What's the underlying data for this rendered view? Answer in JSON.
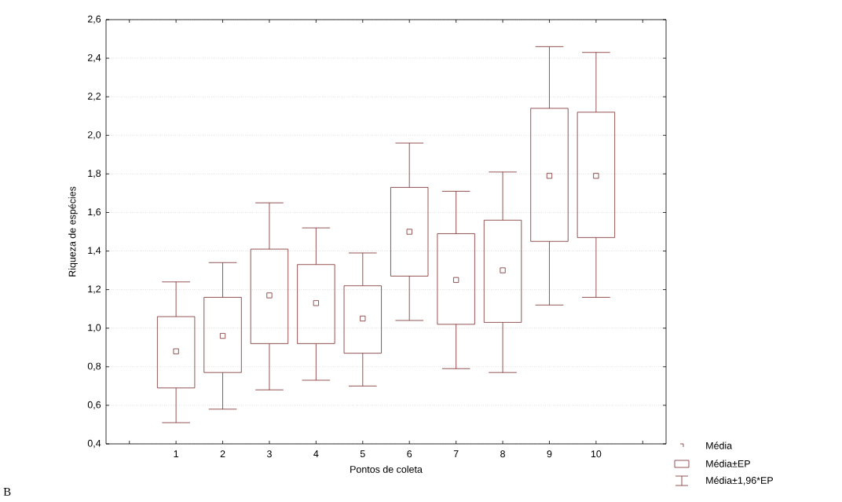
{
  "chart_data": {
    "type": "box",
    "xlabel": "Pontos de coleta",
    "ylabel": "Riqueza de espécies",
    "categories": [
      "1",
      "2",
      "3",
      "4",
      "5",
      "6",
      "7",
      "8",
      "9",
      "10"
    ],
    "series": [
      {
        "color": "#7a2a2a",
        "boxes": [
          {
            "low": 0.51,
            "q1": 0.69,
            "median": 0.88,
            "q3": 1.06,
            "high": 1.24
          },
          {
            "low": 0.58,
            "q1": 0.77,
            "median": 0.96,
            "q3": 1.16,
            "high": 1.34
          },
          {
            "low": 0.68,
            "q1": 0.92,
            "median": 1.17,
            "q3": 1.41,
            "high": 1.65
          },
          {
            "low": 0.73,
            "q1": 0.92,
            "median": 1.13,
            "q3": 1.33,
            "high": 1.52
          },
          {
            "low": 0.7,
            "q1": 0.87,
            "median": 1.05,
            "q3": 1.22,
            "high": 1.39
          },
          {
            "low": 1.04,
            "q1": 1.27,
            "median": 1.5,
            "q3": 1.73,
            "high": 1.96
          },
          {
            "low": 0.79,
            "q1": 1.02,
            "median": 1.25,
            "q3": 1.49,
            "high": 1.71
          },
          {
            "low": 0.77,
            "q1": 1.03,
            "median": 1.3,
            "q3": 1.56,
            "high": 1.81
          },
          {
            "low": 1.12,
            "q1": 1.45,
            "median": 1.79,
            "q3": 2.14,
            "high": 2.46
          },
          {
            "low": 1.16,
            "q1": 1.47,
            "median": 1.79,
            "q3": 2.12,
            "high": 2.43
          }
        ]
      }
    ],
    "ylim": [
      0.4,
      2.6
    ],
    "yticks": [
      {
        "value": 0.4,
        "label": "0,4"
      },
      {
        "value": 0.6,
        "label": "0,6"
      },
      {
        "value": 0.8,
        "label": "0,8"
      },
      {
        "value": 1.0,
        "label": "1,0"
      },
      {
        "value": 1.2,
        "label": "1,2"
      },
      {
        "value": 1.4,
        "label": "1,4"
      },
      {
        "value": 1.6,
        "label": "1,6"
      },
      {
        "value": 1.8,
        "label": "1,8"
      },
      {
        "value": 2.0,
        "label": "2,0"
      },
      {
        "value": 2.2,
        "label": "2,2"
      },
      {
        "value": 2.4,
        "label": "2,4"
      },
      {
        "value": 2.6,
        "label": "2,6"
      }
    ],
    "grid": "y",
    "marker": "square",
    "annotations": [
      "Média",
      "Média±EP",
      "Média±1,96*EP",
      "B"
    ]
  }
}
